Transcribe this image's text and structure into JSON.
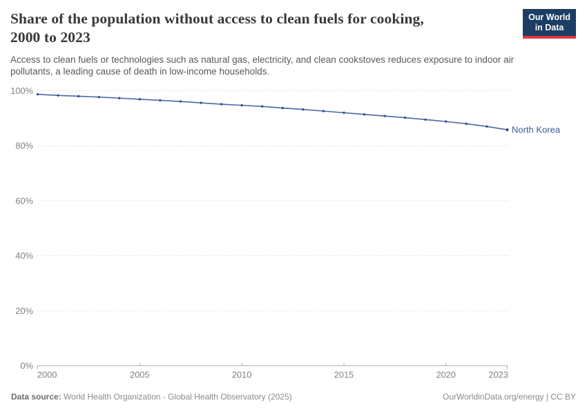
{
  "header": {
    "title_line1": "Share of the population without access to clean fuels for cooking,",
    "title_line2": "2000 to 2023",
    "subtitle_line1": "Access to clean fuels or technologies such as natural gas, electricity, and clean cookstoves reduces exposure to indoor air",
    "subtitle_line2": "pollutants, a leading cause of death in low-income households."
  },
  "logo": {
    "line1": "Our World",
    "line2": "in Data",
    "bg_color": "#1d3d63",
    "stripe_color": "#e0373f"
  },
  "chart_data": {
    "type": "line",
    "title": "Share of the population without access to clean fuels for cooking, 2000 to 2023",
    "x": [
      2000,
      2001,
      2002,
      2003,
      2004,
      2005,
      2006,
      2007,
      2008,
      2009,
      2010,
      2011,
      2012,
      2013,
      2014,
      2015,
      2016,
      2017,
      2018,
      2019,
      2020,
      2021,
      2022,
      2023
    ],
    "series": [
      {
        "name": "North Korea",
        "values": [
          98.7,
          98.3,
          98.0,
          97.7,
          97.3,
          96.9,
          96.5,
          96.1,
          95.6,
          95.1,
          94.7,
          94.3,
          93.7,
          93.2,
          92.6,
          92.0,
          91.4,
          90.8,
          90.2,
          89.5,
          88.8,
          88.0,
          87.0,
          85.8
        ],
        "line_color": "#4a66a0",
        "marker_color": "#34508c",
        "label_color": "#3c5a94"
      }
    ],
    "xlabel": "",
    "ylabel": "",
    "xlim": [
      2000,
      2023
    ],
    "ylim": [
      0,
      100
    ],
    "xticks": [
      2000,
      2005,
      2010,
      2015,
      2020,
      2023
    ],
    "yticks": [
      0,
      20,
      40,
      60,
      80,
      100
    ],
    "ytick_suffix": "%",
    "grid": "horizontal-dashed",
    "legend_position": "end-of-line-label",
    "grid_color": "#dcdcdc",
    "axis_color": "#a8a8a8",
    "tick_text_color": "#818181"
  },
  "footer": {
    "source_label": "Data source:",
    "source_value": " World Health Organization - Global Health Observatory (2025)",
    "credit": "OurWorldinData.org/energy | CC BY"
  }
}
